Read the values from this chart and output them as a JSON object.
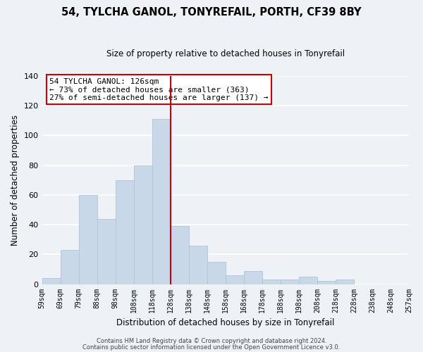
{
  "title": "54, TYLCHA GANOL, TONYREFAIL, PORTH, CF39 8BY",
  "subtitle": "Size of property relative to detached houses in Tonyrefail",
  "xlabel": "Distribution of detached houses by size in Tonyrefail",
  "ylabel": "Number of detached properties",
  "bar_color": "#c8d8e8",
  "bar_edgecolor": "#b0c4d8",
  "bar_values": [
    4,
    23,
    60,
    44,
    70,
    80,
    111,
    39,
    26,
    15,
    6,
    9,
    3,
    3,
    5,
    2,
    3
  ],
  "bin_labels": [
    "59sqm",
    "69sqm",
    "79sqm",
    "88sqm",
    "98sqm",
    "108sqm",
    "118sqm",
    "128sqm",
    "138sqm",
    "148sqm",
    "158sqm",
    "168sqm",
    "178sqm",
    "188sqm",
    "198sqm",
    "208sqm",
    "218sqm",
    "228sqm",
    "238sqm",
    "248sqm",
    "257sqm"
  ],
  "n_bars": 17,
  "n_labels": 21,
  "vline_x": 7,
  "vline_color": "#cc0000",
  "annotation_title": "54 TYLCHA GANOL: 126sqm",
  "annotation_line1": "← 73% of detached houses are smaller (363)",
  "annotation_line2": "27% of semi-detached houses are larger (137) →",
  "annotation_box_edgecolor": "#cc0000",
  "annotation_box_facecolor": "#ffffff",
  "ylim": [
    0,
    140
  ],
  "yticks": [
    0,
    20,
    40,
    60,
    80,
    100,
    120,
    140
  ],
  "footer1": "Contains HM Land Registry data © Crown copyright and database right 2024.",
  "footer2": "Contains public sector information licensed under the Open Government Licence v3.0.",
  "bg_color": "#eef2f7",
  "grid_color": "#ffffff",
  "title_fontsize": 10.5,
  "subtitle_fontsize": 8.5
}
